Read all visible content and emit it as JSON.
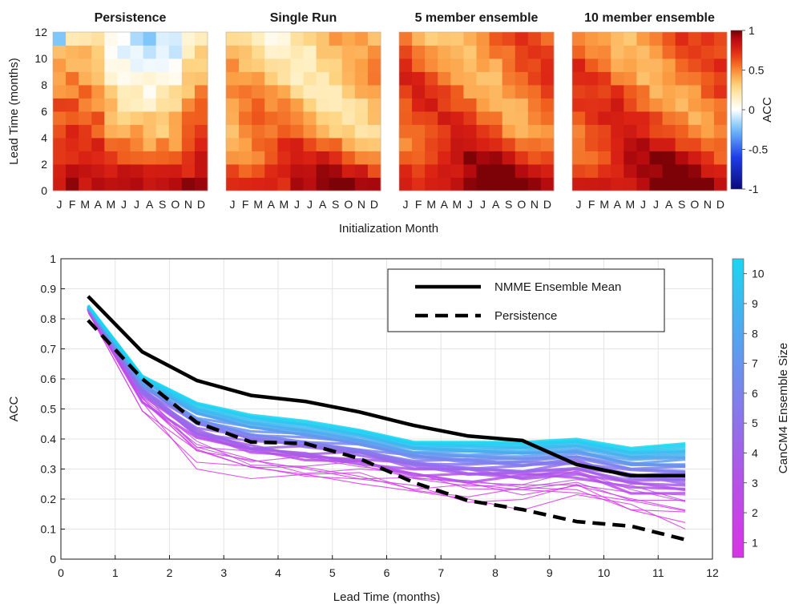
{
  "chart_data": [
    {
      "type": "heatmap",
      "ylabel": "Lead Time (months)",
      "xlabel": "Initialization Month",
      "month_ticks": [
        "J",
        "F",
        "M",
        "A",
        "M",
        "J",
        "J",
        "A",
        "S",
        "O",
        "N",
        "D"
      ],
      "y_ticks": [
        0,
        2,
        4,
        6,
        8,
        10,
        12
      ],
      "ylim": [
        0,
        12
      ],
      "panels": [
        {
          "title": "Persistence"
        },
        {
          "title": "Single Run"
        },
        {
          "title": "5 member ensemble"
        },
        {
          "title": "10 member ensemble"
        }
      ],
      "colorbar": {
        "label": "ACC",
        "ticks": [
          1,
          0.5,
          0,
          -0.5,
          -1
        ],
        "tick_labels": [
          "1",
          "0.5",
          "0",
          "-0.5",
          "-1"
        ],
        "range": [
          -1,
          1
        ]
      }
    },
    {
      "type": "line",
      "xlabel": "Lead Time (months)",
      "ylabel": "ACC",
      "xlim": [
        0,
        12
      ],
      "ylim": [
        0,
        1
      ],
      "x_ticks": [
        0,
        1,
        2,
        3,
        4,
        5,
        6,
        7,
        8,
        9,
        10,
        11,
        12
      ],
      "y_ticks": [
        "0",
        "0.1",
        "0.2",
        "0.3",
        "0.4",
        "0.5",
        "0.6",
        "0.7",
        "0.8",
        "0.9",
        "1"
      ],
      "x": [
        0.5,
        1.5,
        2.5,
        3.5,
        4.5,
        5.5,
        6.5,
        7.5,
        8.5,
        9.5,
        10.5,
        11.5
      ],
      "series": [
        {
          "name": "NMME Ensemble Mean",
          "style": "solid",
          "color": "#000000",
          "values": [
            0.875,
            0.69,
            0.595,
            0.545,
            0.525,
            0.49,
            0.445,
            0.41,
            0.395,
            0.315,
            0.278,
            0.278
          ]
        },
        {
          "name": "Persistence",
          "style": "dashed",
          "color": "#000000",
          "values": [
            0.795,
            0.6,
            0.455,
            0.39,
            0.385,
            0.335,
            0.255,
            0.195,
            0.165,
            0.125,
            0.11,
            0.065
          ]
        }
      ],
      "ensemble_band": {
        "size_range": [
          1,
          10
        ],
        "upper_envelope": [
          0.845,
          0.61,
          0.52,
          0.48,
          0.46,
          0.43,
          0.39,
          0.39,
          0.39,
          0.4,
          0.37,
          0.385
        ],
        "lower_envelope": [
          0.82,
          0.5,
          0.32,
          0.27,
          0.255,
          0.25,
          0.22,
          0.19,
          0.18,
          0.2,
          0.15,
          0.11
        ]
      },
      "colorbar": {
        "label": "CanCM4 Ensemble Size",
        "ticks": [
          1,
          2,
          3,
          4,
          5,
          6,
          7,
          8,
          9,
          10
        ],
        "low_color": "#d933e8",
        "high_color": "#19d6f2"
      },
      "legend": {
        "placement": "top-right"
      }
    }
  ]
}
